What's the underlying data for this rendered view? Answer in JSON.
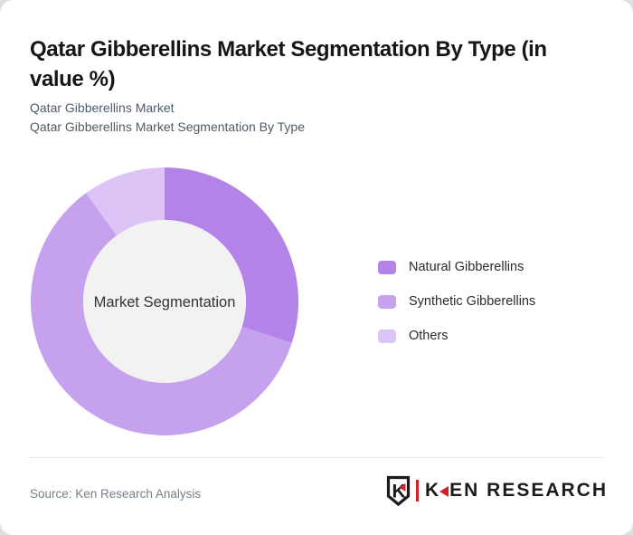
{
  "header": {
    "title_lines": [
      "Qatar Gibberellins Market Segmentation By Type (in",
      "value %)"
    ],
    "title_full": "Qatar Gibberellins Market Segmentation By Type (in value %)",
    "subtitle_lines": [
      "Qatar Gibberellins Market",
      "Qatar Gibberellins Market Segmentation By Type"
    ]
  },
  "chart_data": {
    "type": "pie",
    "subtype": "donut",
    "title": "Qatar Gibberellins Market Segmentation By Type (in value %)",
    "center_label": "Market Segmentation",
    "categories": [
      "Natural Gibberellins",
      "Synthetic Gibberellins",
      "Others"
    ],
    "values": [
      30,
      60,
      10
    ],
    "unit": "% of value",
    "colors": [
      "#b383e8",
      "#c6a2ee",
      "#dcc5f6"
    ],
    "start_angle_deg": 0,
    "direction": "clockwise",
    "outer_radius_px": 148,
    "inner_radius_px": 90,
    "legend_position": "right",
    "series": [
      {
        "name": "Natural Gibberellins",
        "value": 30,
        "color": "#b383e8"
      },
      {
        "name": "Synthetic Gibberellins",
        "value": 60,
        "color": "#c6a2ee"
      },
      {
        "name": "Others",
        "value": 10,
        "color": "#dcc5f6"
      }
    ]
  },
  "footer": {
    "source": "Source: Ken Research Analysis",
    "logo": {
      "brand": "KEN RESEARCH",
      "badge_letter": "K",
      "wordmark_k": "K",
      "wordmark_rest": "EN RESEARCH",
      "red": "#cf2128",
      "dark": "#1b1b1b"
    }
  },
  "theme": {
    "page_bg": "#e0e0e0",
    "card_bg": "#ffffff",
    "title_color": "#161616",
    "subtitle_color": "#4f5b68",
    "legend_text_color": "#2b2b2b",
    "center_circle_color": "#f2f2f2",
    "center_text_color": "#333333",
    "divider_color": "#e6e6e6",
    "source_color": "#75808c"
  }
}
